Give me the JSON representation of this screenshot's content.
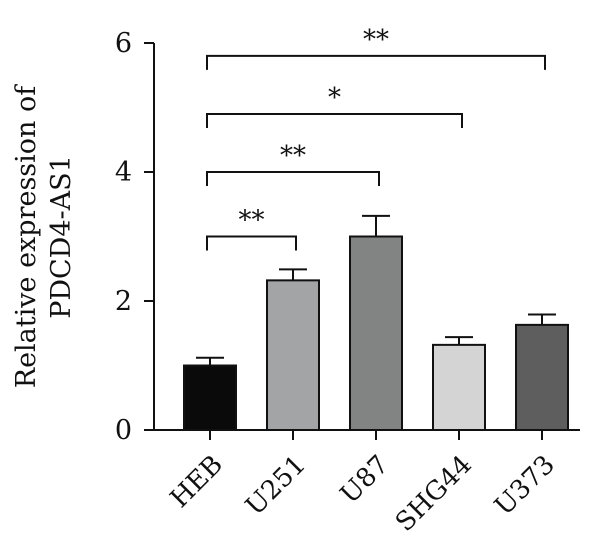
{
  "chart_data": {
    "type": "bar",
    "title": "",
    "xlabel": "",
    "ylabel": [
      "Relative expression of",
      "PDCD4-AS1"
    ],
    "ylim": [
      0,
      6
    ],
    "yticks": [
      0,
      2,
      4,
      6
    ],
    "categories": [
      "HEB",
      "U251",
      "U87",
      "SHG44",
      "U373"
    ],
    "values": [
      1.0,
      2.32,
      3.0,
      1.32,
      1.63
    ],
    "errors": [
      0.12,
      0.17,
      0.32,
      0.12,
      0.16
    ],
    "colors": [
      "#0a0a0a",
      "#a3a4a6",
      "#828383",
      "#d4d4d4",
      "#5e5e5e"
    ],
    "significance": [
      {
        "from": "HEB",
        "to": "U251",
        "label": "**",
        "y": 3.0
      },
      {
        "from": "HEB",
        "to": "U87",
        "label": "**",
        "y": 4.0
      },
      {
        "from": "HEB",
        "to": "SHG44",
        "label": "*",
        "y": 4.9
      },
      {
        "from": "HEB",
        "to": "U373",
        "label": "**",
        "y": 5.8
      }
    ],
    "grid": false,
    "legend": "none"
  }
}
